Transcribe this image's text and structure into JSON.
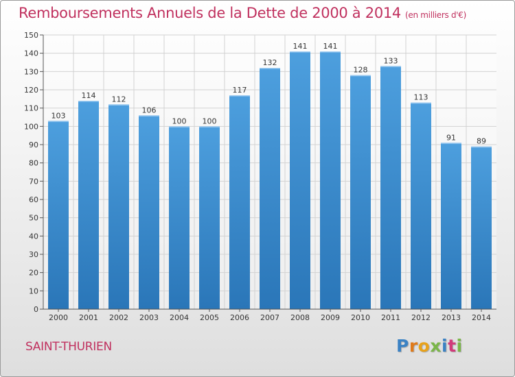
{
  "chart_data": {
    "type": "bar",
    "title": "Remboursements Annuels de la Dette de 2000 à 2014",
    "subtitle": "(en milliers d'€)",
    "categories": [
      "2000",
      "2001",
      "2002",
      "2003",
      "2004",
      "2005",
      "2006",
      "2007",
      "2008",
      "2009",
      "2010",
      "2011",
      "2012",
      "2013",
      "2014"
    ],
    "values": [
      103,
      114,
      112,
      106,
      100,
      100,
      117,
      132,
      141,
      141,
      128,
      133,
      113,
      91,
      89
    ],
    "ylim": [
      0,
      150
    ],
    "yticks": [
      0,
      10,
      20,
      30,
      40,
      50,
      60,
      70,
      80,
      90,
      100,
      110,
      120,
      130,
      140,
      150
    ],
    "grid": true,
    "bar_color": "#4d9fde",
    "bar_color_dark": "#2a76b8",
    "show_data_labels": true
  },
  "footer": {
    "commune": "SAINT-THURIEN",
    "logo_letters": [
      "P",
      "r",
      "o",
      "x",
      "i",
      "t",
      "i"
    ],
    "logo_colors": [
      "#3b82c4",
      "#e07a1a",
      "#e8a21a",
      "#7ab648",
      "#3b82c4",
      "#d13b7a",
      "#7ab648"
    ]
  },
  "colors": {
    "title": "#c0305e",
    "axis": "#555555",
    "grid": "#d2d2d2"
  }
}
